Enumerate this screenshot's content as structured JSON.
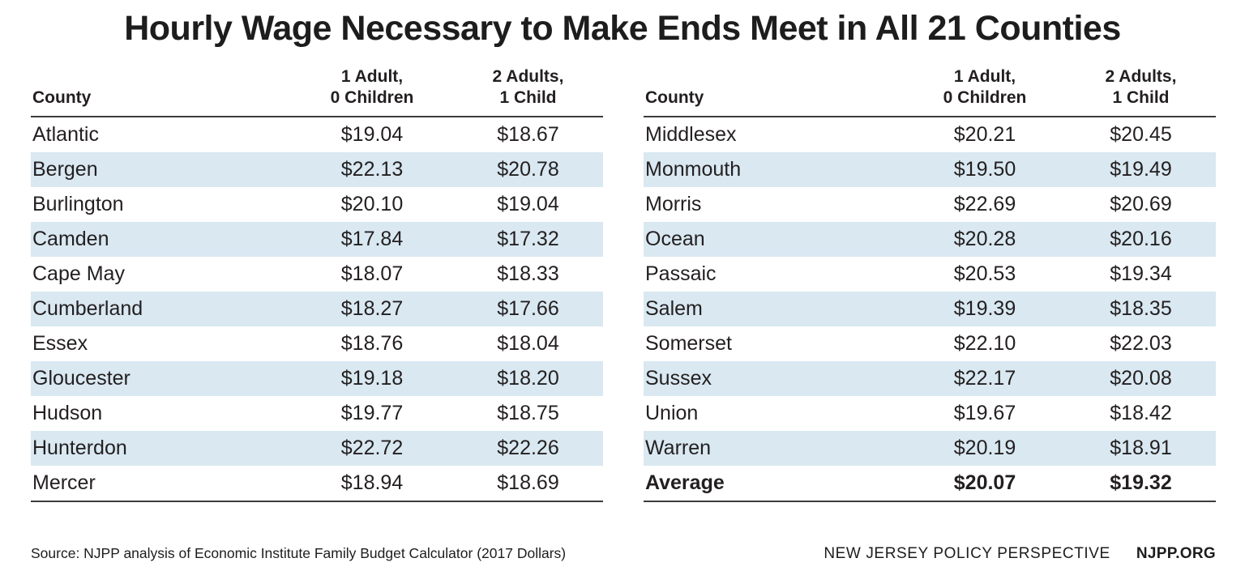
{
  "title": "Hourly Wage Necessary to Make Ends Meet in All 21 Counties",
  "headers": {
    "county": "County",
    "col1": "1 Adult,\n0 Children",
    "col2": "2 Adults,\n1 Child"
  },
  "left_rows": [
    {
      "county": "Atlantic",
      "v1": "$19.04",
      "v2": "$18.67"
    },
    {
      "county": "Bergen",
      "v1": "$22.13",
      "v2": "$20.78"
    },
    {
      "county": "Burlington",
      "v1": "$20.10",
      "v2": "$19.04"
    },
    {
      "county": "Camden",
      "v1": "$17.84",
      "v2": "$17.32"
    },
    {
      "county": "Cape May",
      "v1": "$18.07",
      "v2": "$18.33"
    },
    {
      "county": "Cumberland",
      "v1": "$18.27",
      "v2": "$17.66"
    },
    {
      "county": "Essex",
      "v1": "$18.76",
      "v2": "$18.04"
    },
    {
      "county": "Gloucester",
      "v1": "$19.18",
      "v2": "$18.20"
    },
    {
      "county": "Hudson",
      "v1": "$19.77",
      "v2": "$18.75"
    },
    {
      "county": "Hunterdon",
      "v1": "$22.72",
      "v2": "$22.26"
    },
    {
      "county": "Mercer",
      "v1": "$18.94",
      "v2": "$18.69"
    }
  ],
  "right_rows": [
    {
      "county": "Middlesex",
      "v1": "$20.21",
      "v2": "$20.45"
    },
    {
      "county": "Monmouth",
      "v1": "$19.50",
      "v2": "$19.49"
    },
    {
      "county": "Morris",
      "v1": "$22.69",
      "v2": "$20.69"
    },
    {
      "county": "Ocean",
      "v1": "$20.28",
      "v2": "$20.16"
    },
    {
      "county": "Passaic",
      "v1": "$20.53",
      "v2": "$19.34"
    },
    {
      "county": "Salem",
      "v1": "$19.39",
      "v2": "$18.35"
    },
    {
      "county": "Somerset",
      "v1": "$22.10",
      "v2": "$22.03"
    },
    {
      "county": "Sussex",
      "v1": "$22.17",
      "v2": "$20.08"
    },
    {
      "county": "Union",
      "v1": "$19.67",
      "v2": "$18.42"
    },
    {
      "county": "Warren",
      "v1": "$20.19",
      "v2": "$18.91"
    },
    {
      "county": "Average",
      "v1": "$20.07",
      "v2": "$19.32",
      "bold": true
    }
  ],
  "footer": {
    "source": "Source: NJPP analysis of Economic Institute Family Budget Calculator (2017 Dollars)",
    "org": "NEW JERSEY POLICY PERSPECTIVE",
    "site": "NJPP.ORG"
  },
  "colors": {
    "stripe": "#d9e8f1",
    "text": "#231f20",
    "rule": "#3c3c3c"
  },
  "chart_data": {
    "type": "table",
    "title": "Hourly Wage Necessary to Make Ends Meet in All 21 Counties",
    "columns": [
      "County",
      "1 Adult, 0 Children",
      "2 Adults, 1 Child"
    ],
    "rows": [
      [
        "Atlantic",
        19.04,
        18.67
      ],
      [
        "Bergen",
        22.13,
        20.78
      ],
      [
        "Burlington",
        20.1,
        19.04
      ],
      [
        "Camden",
        17.84,
        17.32
      ],
      [
        "Cape May",
        18.07,
        18.33
      ],
      [
        "Cumberland",
        18.27,
        17.66
      ],
      [
        "Essex",
        18.76,
        18.04
      ],
      [
        "Gloucester",
        19.18,
        18.2
      ],
      [
        "Hudson",
        19.77,
        18.75
      ],
      [
        "Hunterdon",
        22.72,
        22.26
      ],
      [
        "Mercer",
        18.94,
        18.69
      ],
      [
        "Middlesex",
        20.21,
        20.45
      ],
      [
        "Monmouth",
        19.5,
        19.49
      ],
      [
        "Morris",
        22.69,
        20.69
      ],
      [
        "Ocean",
        20.28,
        20.16
      ],
      [
        "Passaic",
        20.53,
        19.34
      ],
      [
        "Salem",
        19.39,
        18.35
      ],
      [
        "Somerset",
        22.1,
        22.03
      ],
      [
        "Sussex",
        22.17,
        20.08
      ],
      [
        "Union",
        19.67,
        18.42
      ],
      [
        "Warren",
        20.19,
        18.91
      ]
    ],
    "average": [
      "Average",
      20.07,
      19.32
    ],
    "units": "USD per hour (2017 Dollars)"
  }
}
